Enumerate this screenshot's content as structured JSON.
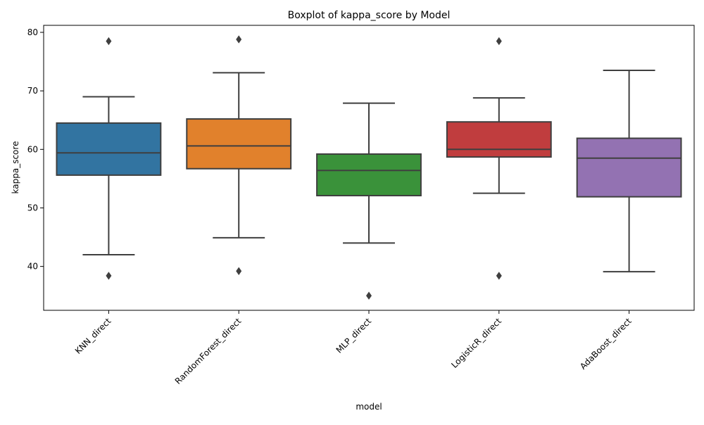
{
  "chart_data": {
    "type": "boxplot",
    "title": "Boxplot of kappa_score by Model",
    "xlabel": "model",
    "ylabel": "kappa_score",
    "ylim": [
      32.5,
      81.2
    ],
    "yticks": [
      40,
      50,
      60,
      70,
      80
    ],
    "grid": false,
    "legend": "none",
    "categories": [
      "KNN_direct",
      "RandomForest_direct",
      "MLP_direct",
      "LogisticR_direct",
      "AdaBoost_direct"
    ],
    "series": [
      {
        "category": "KNN_direct",
        "color": "#3274a1",
        "whisker_low": 42.0,
        "q1": 55.6,
        "median": 59.4,
        "q3": 64.5,
        "whisker_high": 69.0,
        "outliers": [
          78.5,
          38.4
        ]
      },
      {
        "category": "RandomForest_direct",
        "color": "#e1812c",
        "whisker_low": 44.9,
        "q1": 56.7,
        "median": 60.6,
        "q3": 65.2,
        "whisker_high": 73.1,
        "outliers": [
          78.8,
          39.2
        ]
      },
      {
        "category": "MLP_direct",
        "color": "#3a923a",
        "whisker_low": 44.0,
        "q1": 52.1,
        "median": 56.4,
        "q3": 59.2,
        "whisker_high": 67.9,
        "outliers": [
          35.0
        ]
      },
      {
        "category": "LogisticR_direct",
        "color": "#c03d3e",
        "whisker_low": 52.5,
        "q1": 58.7,
        "median": 60.0,
        "q3": 64.7,
        "whisker_high": 68.8,
        "outliers": [
          78.5,
          38.4
        ]
      },
      {
        "category": "AdaBoost_direct",
        "color": "#9372b2",
        "whisker_low": 39.1,
        "q1": 51.9,
        "median": 58.5,
        "q3": 61.9,
        "whisker_high": 73.5,
        "outliers": []
      }
    ]
  }
}
